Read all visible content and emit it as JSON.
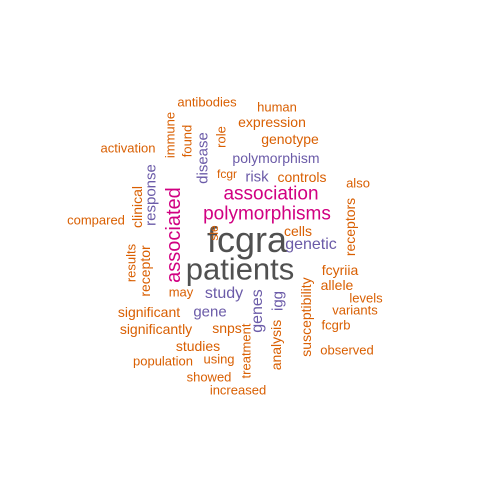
{
  "colors": {
    "top": "#505050",
    "high": "#d10081",
    "mid": "#6b5ba8",
    "low": "#d95f02"
  },
  "words": [
    {
      "text": "fcgra",
      "tier": "top"
    },
    {
      "text": "patients",
      "tier": "top"
    },
    {
      "text": "association",
      "tier": "high"
    },
    {
      "text": "polymorphisms",
      "tier": "high"
    },
    {
      "text": "associated",
      "tier": "high"
    },
    {
      "text": "genetic",
      "tier": "mid"
    },
    {
      "text": "polymorphism",
      "tier": "mid"
    },
    {
      "text": "response",
      "tier": "mid"
    },
    {
      "text": "disease",
      "tier": "mid"
    },
    {
      "text": "risk",
      "tier": "mid"
    },
    {
      "text": "study",
      "tier": "mid"
    },
    {
      "text": "gene",
      "tier": "mid"
    },
    {
      "text": "genes",
      "tier": "mid"
    },
    {
      "text": "igg",
      "tier": "mid"
    },
    {
      "text": "antibodies",
      "tier": "low"
    },
    {
      "text": "human",
      "tier": "low"
    },
    {
      "text": "expression",
      "tier": "low"
    },
    {
      "text": "immune",
      "tier": "low"
    },
    {
      "text": "found",
      "tier": "low"
    },
    {
      "text": "role",
      "tier": "low"
    },
    {
      "text": "activation",
      "tier": "low"
    },
    {
      "text": "genotype",
      "tier": "low"
    },
    {
      "text": "fcgr",
      "tier": "low"
    },
    {
      "text": "controls",
      "tier": "low"
    },
    {
      "text": "also",
      "tier": "low"
    },
    {
      "text": "clinical",
      "tier": "low"
    },
    {
      "text": "cells",
      "tier": "low"
    },
    {
      "text": "receptors",
      "tier": "low"
    },
    {
      "text": "compared",
      "tier": "low"
    },
    {
      "text": "sle",
      "tier": "low"
    },
    {
      "text": "results",
      "tier": "low"
    },
    {
      "text": "receptor",
      "tier": "low"
    },
    {
      "text": "fcyriia",
      "tier": "low"
    },
    {
      "text": "allele",
      "tier": "low"
    },
    {
      "text": "may",
      "tier": "low"
    },
    {
      "text": "levels",
      "tier": "low"
    },
    {
      "text": "significant",
      "tier": "low"
    },
    {
      "text": "variants",
      "tier": "low"
    },
    {
      "text": "fcgrb",
      "tier": "low"
    },
    {
      "text": "significantly",
      "tier": "low"
    },
    {
      "text": "snps",
      "tier": "low"
    },
    {
      "text": "susceptibility",
      "tier": "low"
    },
    {
      "text": "studies",
      "tier": "low"
    },
    {
      "text": "analysis",
      "tier": "low"
    },
    {
      "text": "treatment",
      "tier": "low"
    },
    {
      "text": "observed",
      "tier": "low"
    },
    {
      "text": "population",
      "tier": "low"
    },
    {
      "text": "using",
      "tier": "low"
    },
    {
      "text": "showed",
      "tier": "low"
    },
    {
      "text": "increased",
      "tier": "low"
    }
  ]
}
